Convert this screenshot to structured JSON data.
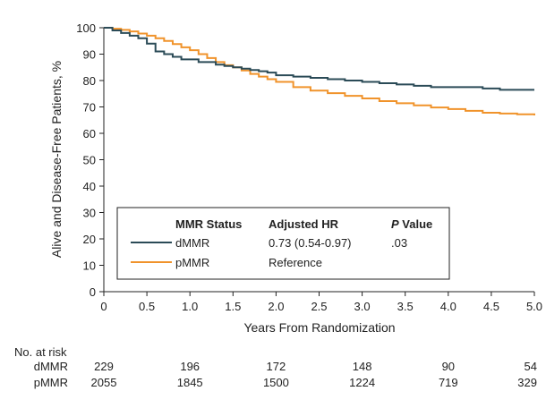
{
  "chart_data": {
    "type": "line",
    "chart_subtype": "kaplan-meier step",
    "xlabel": "Years From Randomization",
    "ylabel": "Alive and Disease-Free Patients, %",
    "xlim": [
      0,
      5
    ],
    "ylim": [
      0,
      100
    ],
    "x_ticks": [
      "0",
      "0.5",
      "1.0",
      "1.5",
      "2.0",
      "2.5",
      "3.0",
      "3.5",
      "4.0",
      "4.5",
      "5.0"
    ],
    "y_ticks": [
      "0",
      "10",
      "20",
      "30",
      "40",
      "50",
      "60",
      "70",
      "80",
      "90",
      "100"
    ],
    "grid": false,
    "legend": {
      "placement": "lower-left",
      "headers": {
        "status": "MMR Status",
        "hr": "Adjusted HR",
        "p_italic": "P",
        "p_rest": " Value"
      },
      "rows": [
        {
          "name": "dMMR",
          "hr": "0.73 (0.54-0.97)",
          "p": ".03"
        },
        {
          "name": "pMMR",
          "hr": "Reference",
          "p": ""
        }
      ]
    },
    "series": [
      {
        "name": "dMMR",
        "color": "#2b4b57",
        "x": [
          0,
          0.1,
          0.2,
          0.3,
          0.4,
          0.5,
          0.6,
          0.7,
          0.8,
          0.9,
          1.0,
          1.1,
          1.2,
          1.3,
          1.4,
          1.5,
          1.6,
          1.7,
          1.8,
          1.9,
          2.0,
          2.2,
          2.4,
          2.6,
          2.8,
          3.0,
          3.2,
          3.4,
          3.6,
          3.8,
          4.0,
          4.2,
          4.4,
          4.6,
          4.8,
          5.0
        ],
        "y": [
          100,
          99,
          98,
          97,
          96,
          94,
          91,
          90,
          89,
          88,
          88,
          87,
          87,
          86,
          85.5,
          85,
          84.5,
          84,
          83.5,
          83,
          82,
          81.5,
          81,
          80.5,
          80,
          79.5,
          79,
          78.5,
          78,
          77.5,
          77.5,
          77.5,
          77,
          76.5,
          76.5,
          76.5
        ]
      },
      {
        "name": "pMMR",
        "color": "#f0932b",
        "x": [
          0,
          0.1,
          0.2,
          0.3,
          0.4,
          0.5,
          0.6,
          0.7,
          0.8,
          0.9,
          1.0,
          1.1,
          1.2,
          1.3,
          1.4,
          1.5,
          1.6,
          1.7,
          1.8,
          1.9,
          2.0,
          2.2,
          2.4,
          2.6,
          2.8,
          3.0,
          3.2,
          3.4,
          3.6,
          3.8,
          4.0,
          4.2,
          4.4,
          4.6,
          4.8,
          5.0
        ],
        "y": [
          100,
          99.6,
          99.2,
          98.6,
          97.8,
          97,
          96,
          95,
          93.8,
          92.6,
          91.5,
          90,
          88.5,
          87,
          85.8,
          85,
          83.8,
          82.5,
          81.5,
          80.5,
          79.5,
          77.5,
          76.2,
          75.2,
          74.2,
          73.2,
          72.2,
          71.4,
          70.6,
          69.8,
          69.2,
          68.5,
          67.8,
          67.5,
          67.2,
          66.8
        ]
      }
    ],
    "risk_table": {
      "title": "No. at risk",
      "x": [
        0,
        1,
        2,
        3,
        4,
        5
      ],
      "rows": [
        {
          "label": "dMMR",
          "values": [
            "229",
            "196",
            "172",
            "148",
            "90",
            "54"
          ]
        },
        {
          "label": "pMMR",
          "values": [
            "2055",
            "1845",
            "1500",
            "1224",
            "719",
            "329"
          ]
        }
      ]
    }
  }
}
